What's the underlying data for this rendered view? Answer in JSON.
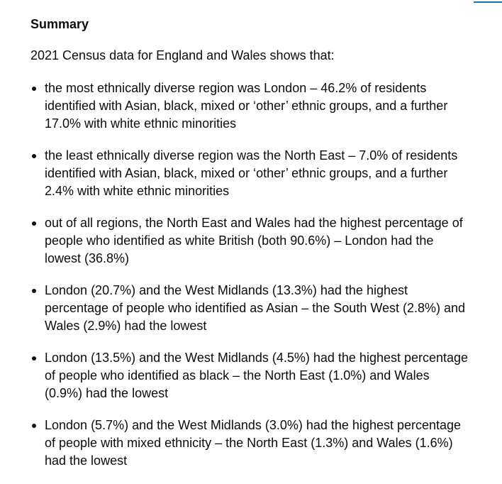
{
  "heading": "Summary",
  "intro": "2021 Census data for England and Wales shows that:",
  "bullets": [
    "the most ethnically diverse region was London – 46.2% of residents\nidentified with Asian, black, mixed or ‘other’ ethnic groups, and a further\n17.0% with white ethnic minorities",
    "the least ethnically diverse region was the North East – 7.0% of residents\nidentified with Asian, black, mixed or ‘other’ ethnic groups, and a further\n2.4% with white ethnic minorities",
    "out of all regions, the North East and Wales had the highest percentage of\npeople who identified as white British (both 90.6%) – London had the\nlowest (36.8%)",
    "London (20.7%) and the West Midlands (13.3%) had the highest\npercentage of people who identified as Asian – the South West (2.8%) and\nWales (2.9%) had the lowest",
    "London (13.5%) and the West Midlands (4.5%) had the highest percentage\nof people who identified as black – the North East (1.0%) and Wales\n(0.9%) had the lowest",
    "London (5.7%) and the West Midlands (3.0%) had the highest percentage\nof people with mixed ethnicity – the North East (1.3%) and Wales (1.6%)\nhad the lowest"
  ],
  "colors": {
    "text": "#0b0c0c",
    "link": "#1d70b8"
  }
}
